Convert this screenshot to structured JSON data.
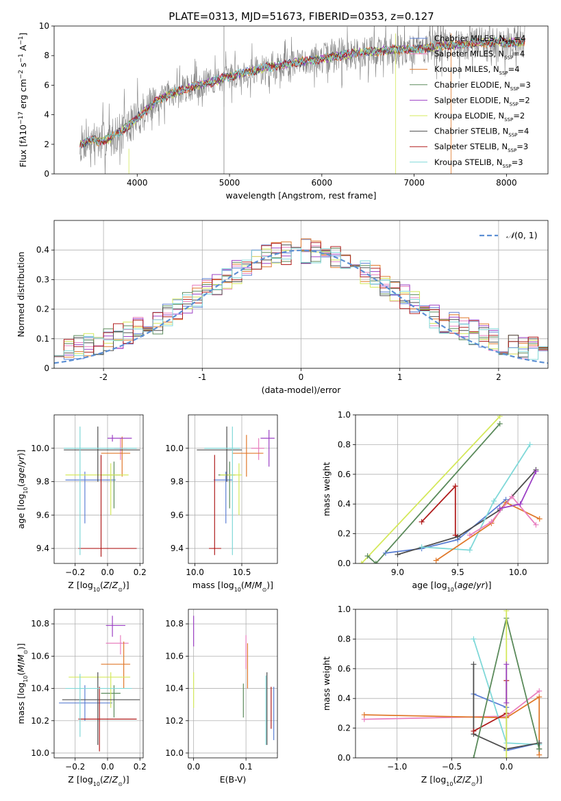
{
  "figure": {
    "title": "PLATE=0313, MJD=51673, FIBERID=0353, z=0.127"
  },
  "chart_data": [
    {
      "id": "spectrum",
      "type": "line",
      "xlabel": "wavelength [Angstrom, rest frame]",
      "ylabel_html": "Flux [f<tspan font-style='italic'>λ</tspan>10<tspan baseline-shift='super' font-size='9'>−17</tspan> erg cm<tspan baseline-shift='super' font-size='9'>−2</tspan> s<tspan baseline-shift='super' font-size='9'>−1</tspan> A<tspan baseline-shift='super' font-size='9'>−1</tspan>]",
      "xlim": [
        3100,
        8450
      ],
      "ylim": [
        0,
        10
      ],
      "xticks": [
        4000,
        5000,
        6000,
        7000,
        8000
      ],
      "yticks": [
        0,
        2,
        4,
        6,
        8,
        10
      ],
      "grid": false,
      "legend": "top-right",
      "observed_color": "#808080",
      "model_anchors": {
        "x": [
          3380,
          3500,
          3600,
          3700,
          3800,
          3900,
          4000,
          4100,
          4200,
          4300,
          4400,
          4500,
          4600,
          4800,
          5000,
          5200,
          5400,
          5600,
          5800,
          6000,
          6200,
          6400,
          6600,
          6800,
          7000,
          7200,
          7400,
          7600,
          7800,
          8000,
          8200
        ],
        "y": [
          2.0,
          2.3,
          2.2,
          2.4,
          2.8,
          3.2,
          3.8,
          4.3,
          4.9,
          5.2,
          5.5,
          5.7,
          5.9,
          6.2,
          6.6,
          6.9,
          7.2,
          7.4,
          7.6,
          7.8,
          8.0,
          8.2,
          8.3,
          8.4,
          8.4,
          8.6,
          8.7,
          8.8,
          8.9,
          8.9,
          8.9
        ]
      },
      "series": [
        {
          "name": "Chabrier MILES, N<tspan baseline-shift='sub' font-size='7'>SSP</tspan>=4",
          "color": "#5b7fd4"
        },
        {
          "name": "Salpeter MILES, N<tspan baseline-shift='sub' font-size='7'>SSP</tspan>=4",
          "color": "#e87fbf"
        },
        {
          "name": "Kroupa MILES, N<tspan baseline-shift='sub' font-size='7'>SSP</tspan>=4",
          "color": "#e0782a"
        },
        {
          "name": "Chabrier ELODIE, N<tspan baseline-shift='sub' font-size='7'>SSP</tspan>=3",
          "color": "#5a8a5a"
        },
        {
          "name": "Salpeter ELODIE, N<tspan baseline-shift='sub' font-size='7'>SSP</tspan>=2",
          "color": "#9b3fc4"
        },
        {
          "name": "Kroupa ELODIE, N<tspan baseline-shift='sub' font-size='7'>SSP</tspan>=2",
          "color": "#d4e85a"
        },
        {
          "name": "Chabrier STELIB, N<tspan baseline-shift='sub' font-size='7'>SSP</tspan>=4",
          "color": "#4d4d4d"
        },
        {
          "name": "Salpeter STELIB, N<tspan baseline-shift='sub' font-size='7'>SSP</tspan>=3",
          "color": "#b01c1c"
        },
        {
          "name": "Kroupa STELIB, N<tspan baseline-shift='sub' font-size='7'>SSP</tspan>=3",
          "color": "#7fd8d8"
        }
      ]
    },
    {
      "id": "residuals",
      "type": "histogram",
      "xlabel": "(data-model)/error",
      "ylabel": "Normed distribution",
      "xlim": [
        -2.5,
        2.5
      ],
      "ylim": [
        0,
        0.5
      ],
      "xticks": [
        -2,
        -1,
        0,
        1,
        2
      ],
      "yticks": [
        0.0,
        0.1,
        0.2,
        0.3,
        0.4
      ],
      "grid": true,
      "legend": "top-right",
      "legend_label_html": "<tspan font-style='italic'>𝒩</tspan>(0, 1)",
      "gauss_color": "#5b8fd4",
      "bins": 50,
      "series_colors": [
        "#5b7fd4",
        "#e87fbf",
        "#e0782a",
        "#5a8a5a",
        "#9b3fc4",
        "#d4e85a",
        "#4d4d4d",
        "#b01c1c",
        "#7fd8d8"
      ]
    },
    {
      "id": "age_vs_Z",
      "type": "errorbar",
      "xlabel_html": "Z [log<tspan baseline-shift='sub' font-size='8'>10</tspan>(<tspan font-style='italic'>Z</tspan>/<tspan font-style='italic'>Z</tspan><tspan baseline-shift='sub' font-size='8'>⊙</tspan>)]",
      "ylabel_html": "age  [log<tspan baseline-shift='sub' font-size='8'>10</tspan>(<tspan font-style='italic'>age</tspan>/<tspan font-style='italic'>yr</tspan>)]",
      "xlim": [
        -0.33,
        0.22
      ],
      "ylim": [
        9.31,
        10.2
      ],
      "xticks": [
        -0.2,
        0.0,
        0.2
      ],
      "xticklabels": [
        "−0.2",
        "0.0",
        "0.2"
      ],
      "yticks": [
        9.4,
        9.6,
        9.8,
        10.0
      ],
      "yticklabels": [
        "9.4",
        "9.6",
        "9.8",
        "10.0"
      ],
      "grid": true,
      "points": [
        {
          "color": "#5b7fd4",
          "x": -0.14,
          "xl": -0.26,
          "xh": 0.05,
          "y": 9.81,
          "yl": 9.55,
          "yh": 9.86
        },
        {
          "color": "#e87fbf",
          "x": 0.08,
          "xl": 0.04,
          "xh": 0.12,
          "y": 10.0,
          "yl": 9.93,
          "yh": 10.06
        },
        {
          "color": "#e0782a",
          "x": 0.09,
          "xl": -0.04,
          "xh": 0.14,
          "y": 9.97,
          "yl": 9.83,
          "yh": 10.07
        },
        {
          "color": "#5a8a5a",
          "x": 0.04,
          "xl": -0.04,
          "xh": 0.08,
          "y": 9.84,
          "yl": 9.64,
          "yh": 9.92
        },
        {
          "color": "#9b3fc4",
          "x": 0.03,
          "xl": 0.0,
          "xh": 0.15,
          "y": 10.06,
          "yl": 10.04,
          "yh": 10.08
        },
        {
          "color": "#d4e85a",
          "x": 0.02,
          "xl": -0.26,
          "xh": 0.13,
          "y": 9.84,
          "yl": 9.6,
          "yh": 9.91
        },
        {
          "color": "#4d4d4d",
          "x": -0.06,
          "xl": -0.27,
          "xh": 0.2,
          "y": 9.99,
          "yl": 9.8,
          "yh": 10.13
        },
        {
          "color": "#b01c1c",
          "x": -0.04,
          "xl": -0.18,
          "xh": 0.18,
          "y": 9.4,
          "yl": 9.35,
          "yh": 9.96
        },
        {
          "color": "#7fd8d8",
          "x": -0.17,
          "xl": -0.27,
          "xh": 0.18,
          "y": 10.0,
          "yl": 9.36,
          "yh": 10.13
        }
      ]
    },
    {
      "id": "age_vs_mass",
      "type": "errorbar",
      "xlabel_html": "mass [log<tspan baseline-shift='sub' font-size='8'>10</tspan>(<tspan font-style='italic'>M</tspan>/<tspan font-style='italic'>M</tspan><tspan baseline-shift='sub' font-size='8'>⊙</tspan>)]",
      "ylabel_html": "",
      "xlim": [
        9.93,
        10.88
      ],
      "ylim": [
        9.31,
        10.2
      ],
      "xticks": [
        10.0,
        10.5
      ],
      "xticklabels": [
        "10.0",
        "10.5"
      ],
      "yticks": [
        9.4,
        9.6,
        9.8,
        10.0
      ],
      "yticklabels": [
        "9.4",
        "9.6",
        "9.8",
        "10.0"
      ],
      "grid": true,
      "points": [
        {
          "color": "#5b7fd4",
          "x": 10.33,
          "xl": 10.2,
          "xh": 10.4,
          "y": 9.81,
          "yl": 9.55,
          "yh": 9.86
        },
        {
          "color": "#e87fbf",
          "x": 10.68,
          "xl": 10.6,
          "xh": 10.74,
          "y": 10.0,
          "yl": 9.93,
          "yh": 10.06
        },
        {
          "color": "#e0782a",
          "x": 10.55,
          "xl": 10.4,
          "xh": 10.73,
          "y": 9.97,
          "yl": 9.83,
          "yh": 10.08
        },
        {
          "color": "#5a8a5a",
          "x": 10.37,
          "xl": 10.25,
          "xh": 10.43,
          "y": 9.84,
          "yl": 9.64,
          "yh": 9.92
        },
        {
          "color": "#9b3fc4",
          "x": 10.79,
          "xl": 10.7,
          "xh": 10.85,
          "y": 10.06,
          "yl": 9.89,
          "yh": 10.11
        },
        {
          "color": "#d4e85a",
          "x": 10.47,
          "xl": 10.27,
          "xh": 10.5,
          "y": 9.84,
          "yl": 9.6,
          "yh": 9.91
        },
        {
          "color": "#4d4d4d",
          "x": 10.34,
          "xl": 10.02,
          "xh": 10.5,
          "y": 9.99,
          "yl": 9.8,
          "yh": 10.13
        },
        {
          "color": "#b01c1c",
          "x": 10.21,
          "xl": 10.15,
          "xh": 10.28,
          "y": 9.4,
          "yl": 9.36,
          "yh": 9.96
        },
        {
          "color": "#7fd8d8",
          "x": 10.4,
          "xl": 10.1,
          "xh": 10.48,
          "y": 10.0,
          "yl": 9.36,
          "yh": 10.13
        }
      ]
    },
    {
      "id": "weight_vs_age",
      "type": "line",
      "xlabel_html": "age  [log<tspan baseline-shift='sub' font-size='8'>10</tspan>(<tspan font-style='italic'>age</tspan>/<tspan font-style='italic'>yr</tspan>)]",
      "ylabel": "mass weight",
      "xlim": [
        8.65,
        10.25
      ],
      "ylim": [
        0,
        1.0
      ],
      "xticks": [
        9.0,
        9.5,
        10.0
      ],
      "xticklabels": [
        "9.0",
        "9.5",
        "10.0"
      ],
      "yticks": [
        0.0,
        0.2,
        0.4,
        0.6,
        0.8,
        1.0
      ],
      "yticklabels": [
        "0.0",
        "0.2",
        "0.4",
        "0.6",
        "0.8",
        "1.0"
      ],
      "grid": true,
      "series": [
        {
          "color": "#d4e85a",
          "x": [
            8.7,
            9.85
          ],
          "y": [
            0.0,
            0.99
          ]
        },
        {
          "color": "#5a8a5a",
          "x": [
            8.75,
            8.82,
            9.85
          ],
          "y": [
            0.05,
            0.0,
            0.94
          ]
        },
        {
          "color": "#b01c1c",
          "x": [
            9.2,
            9.48,
            9.48,
            9.5
          ],
          "y": [
            0.28,
            0.52,
            0.19,
            0.18
          ]
        },
        {
          "color": "#5b7fd4",
          "x": [
            8.9,
            9.2,
            9.5,
            9.9
          ],
          "y": [
            0.07,
            0.1,
            0.16,
            0.43
          ]
        },
        {
          "color": "#4d4d4d",
          "x": [
            9.0,
            9.5,
            9.85,
            10.15
          ],
          "y": [
            0.06,
            0.18,
            0.36,
            0.63
          ]
        },
        {
          "color": "#7fd8d8",
          "x": [
            9.2,
            9.6,
            9.8,
            10.1
          ],
          "y": [
            0.11,
            0.09,
            0.42,
            0.8
          ]
        },
        {
          "color": "#e0782a",
          "x": [
            9.32,
            9.78,
            9.9,
            10.18
          ],
          "y": [
            0.02,
            0.27,
            0.41,
            0.3
          ]
        },
        {
          "color": "#e87fbf",
          "x": [
            9.6,
            9.78,
            9.95,
            10.15
          ],
          "y": [
            0.19,
            0.28,
            0.45,
            0.26
          ]
        },
        {
          "color": "#9b3fc4",
          "x": [
            9.85,
            10.02,
            10.15
          ],
          "y": [
            0.37,
            0.4,
            0.62
          ]
        }
      ]
    },
    {
      "id": "mass_vs_Z",
      "type": "errorbar",
      "xlabel_html": "Z [log<tspan baseline-shift='sub' font-size='8'>10</tspan>(<tspan font-style='italic'>Z</tspan>/<tspan font-style='italic'>Z</tspan><tspan baseline-shift='sub' font-size='8'>⊙</tspan>)]",
      "ylabel_html": "mass [log<tspan baseline-shift='sub' font-size='8'>10</tspan>(<tspan font-style='italic'>M</tspan>/<tspan font-style='italic'>M</tspan><tspan baseline-shift='sub' font-size='8'>⊙</tspan>)]",
      "xlim": [
        -0.33,
        0.22
      ],
      "ylim": [
        9.97,
        10.89
      ],
      "xticks": [
        -0.2,
        0.0,
        0.2
      ],
      "xticklabels": [
        "−0.2",
        "0.0",
        "0.2"
      ],
      "yticks": [
        10.0,
        10.2,
        10.4,
        10.6,
        10.8
      ],
      "yticklabels": [
        "10.0",
        "10.2",
        "10.4",
        "10.6",
        "10.8"
      ],
      "grid": true,
      "points": [
        {
          "color": "#5b7fd4",
          "x": -0.14,
          "xl": -0.3,
          "xh": 0.03,
          "y": 10.31,
          "yl": 10.2,
          "yh": 10.42
        },
        {
          "color": "#e87fbf",
          "x": 0.08,
          "xl": -0.01,
          "xh": 0.13,
          "y": 10.68,
          "yl": 10.61,
          "yh": 10.73
        },
        {
          "color": "#e0782a",
          "x": 0.1,
          "xl": -0.04,
          "xh": 0.14,
          "y": 10.55,
          "yl": 10.4,
          "yh": 10.69
        },
        {
          "color": "#5a8a5a",
          "x": 0.04,
          "xl": -0.04,
          "xh": 0.08,
          "y": 10.37,
          "yl": 10.22,
          "yh": 10.42
        },
        {
          "color": "#9b3fc4",
          "x": 0.03,
          "xl": -0.01,
          "xh": 0.11,
          "y": 10.79,
          "yl": 10.72,
          "yh": 10.85
        },
        {
          "color": "#d4e85a",
          "x": 0.02,
          "xl": -0.24,
          "xh": 0.14,
          "y": 10.47,
          "yl": 10.28,
          "yh": 10.5
        },
        {
          "color": "#4d4d4d",
          "x": -0.06,
          "xl": -0.28,
          "xh": 0.2,
          "y": 10.33,
          "yl": 10.05,
          "yh": 10.5
        },
        {
          "color": "#b01c1c",
          "x": -0.05,
          "xl": -0.18,
          "xh": 0.18,
          "y": 10.21,
          "yl": 10.01,
          "yh": 10.41
        },
        {
          "color": "#7fd8d8",
          "x": -0.17,
          "xl": -0.26,
          "xh": 0.15,
          "y": 10.4,
          "yl": 10.1,
          "yh": 10.49
        }
      ]
    },
    {
      "id": "mass_vs_EBV",
      "type": "errorbar",
      "xlabel": "E(B-V)",
      "ylabel_html": "",
      "xlim": [
        -0.01,
        0.16
      ],
      "ylim": [
        9.97,
        10.89
      ],
      "xticks": [
        0.0,
        0.1
      ],
      "xticklabels": [
        "0.0",
        "0.1"
      ],
      "yticks": [
        10.0,
        10.2,
        10.4,
        10.6,
        10.8
      ],
      "yticklabels": [
        "10.0",
        "10.2",
        "10.4",
        "10.6",
        "10.8"
      ],
      "grid": true,
      "points": [
        {
          "color": "#5b7fd4",
          "x": 0.153,
          "xl": 0.153,
          "xh": 0.153,
          "y": 10.31,
          "yl": 10.08,
          "yh": 10.41
        },
        {
          "color": "#e87fbf",
          "x": 0.1,
          "xl": 0.1,
          "xh": 0.1,
          "y": 10.65,
          "yl": 10.52,
          "yh": 10.73
        },
        {
          "color": "#e0782a",
          "x": 0.103,
          "xl": 0.103,
          "xh": 0.103,
          "y": 10.55,
          "yl": 10.4,
          "yh": 10.68
        },
        {
          "color": "#5a8a5a",
          "x": 0.095,
          "xl": 0.095,
          "xh": 0.095,
          "y": 10.33,
          "yl": 10.22,
          "yh": 10.43
        },
        {
          "color": "#9b3fc4",
          "x": 0.0,
          "xl": 0.0,
          "xh": 0.0,
          "y": 10.79,
          "yl": 10.66,
          "yh": 10.85
        },
        {
          "color": "#d4e85a",
          "x": 0.0,
          "xl": 0.0,
          "xh": 0.0,
          "y": 10.4,
          "yl": 10.28,
          "yh": 10.5
        },
        {
          "color": "#4d4d4d",
          "x": 0.14,
          "xl": 0.14,
          "xh": 0.14,
          "y": 10.33,
          "yl": 10.05,
          "yh": 10.5
        },
        {
          "color": "#b01c1c",
          "x": 0.148,
          "xl": 0.148,
          "xh": 0.148,
          "y": 10.25,
          "yl": 10.15,
          "yh": 10.41
        },
        {
          "color": "#7fd8d8",
          "x": 0.138,
          "xl": 0.138,
          "xh": 0.138,
          "y": 10.3,
          "yl": 10.05,
          "yh": 10.48
        }
      ]
    },
    {
      "id": "weight_vs_Z",
      "type": "line",
      "xlabel_html": "Z [log<tspan baseline-shift='sub' font-size='8'>10</tspan>(<tspan font-style='italic'>Z</tspan>/<tspan font-style='italic'>Z</tspan><tspan baseline-shift='sub' font-size='8'>⊙</tspan>)]",
      "ylabel": "mass weight",
      "xlim": [
        -1.38,
        0.38
      ],
      "ylim": [
        0,
        1.0
      ],
      "xticks": [
        -1.0,
        -0.5,
        0.0
      ],
      "xticklabels": [
        "−1.0",
        "−0.5",
        "0.0"
      ],
      "yticks": [
        0.0,
        0.2,
        0.4,
        0.6,
        0.8,
        1.0
      ],
      "yticklabels": [
        "0.0",
        "0.2",
        "0.4",
        "0.6",
        "0.8",
        "1.0"
      ],
      "grid": true,
      "series": [
        {
          "color": "#e87fbf",
          "x": [
            -1.3,
            0.0,
            0.3
          ],
          "y": [
            0.26,
            0.28,
            0.45
          ]
        },
        {
          "color": "#e0782a",
          "x": [
            -1.3,
            0.0,
            0.3,
            0.3
          ],
          "y": [
            0.29,
            0.27,
            0.41,
            0.02
          ]
        },
        {
          "color": "#5b7fd4",
          "x": [
            -0.3,
            0.0,
            0.0,
            0.3
          ],
          "y": [
            0.43,
            0.34,
            0.05,
            0.1
          ]
        },
        {
          "color": "#7fd8d8",
          "x": [
            -0.3,
            0.0,
            0.3
          ],
          "y": [
            0.8,
            0.1,
            0.09
          ]
        },
        {
          "color": "#4d4d4d",
          "x": [
            -0.3,
            -0.3,
            0.0,
            0.3,
            0.3
          ],
          "y": [
            0.63,
            0.16,
            0.06,
            0.1,
            0.06
          ]
        },
        {
          "color": "#b01c1c",
          "x": [
            -0.3,
            0.0,
            0.0
          ],
          "y": [
            0.18,
            0.3,
            0.52
          ]
        },
        {
          "color": "#5a8a5a",
          "x": [
            -0.3,
            0.0,
            0.3
          ],
          "y": [
            0.0,
            0.94,
            0.06
          ]
        },
        {
          "color": "#d4e85a",
          "x": [
            0.0,
            0.0
          ],
          "y": [
            0.0,
            0.99
          ]
        },
        {
          "color": "#9b3fc4",
          "x": [
            0.0,
            0.0
          ],
          "y": [
            0.37,
            0.63
          ]
        }
      ]
    }
  ]
}
